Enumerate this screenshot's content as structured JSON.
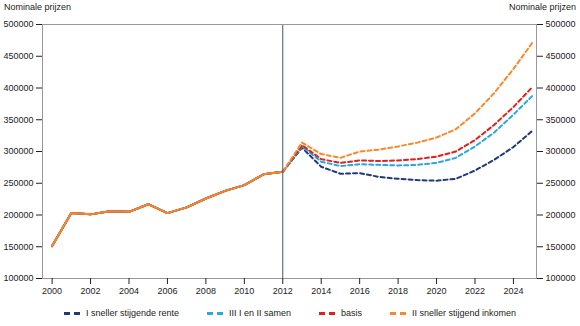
{
  "chart_data": {
    "type": "line",
    "y_label": "Nominale prijzen",
    "y2_label": "Nominale prijzen",
    "x": [
      2000,
      2001,
      2002,
      2003,
      2004,
      2005,
      2006,
      2007,
      2008,
      2009,
      2010,
      2011,
      2012,
      2013,
      2014,
      2015,
      2016,
      2017,
      2018,
      2019,
      2020,
      2021,
      2022,
      2023,
      2024,
      2025
    ],
    "series": [
      {
        "name": "I sneller stijgende rente",
        "color": "#1f3a7a",
        "values": [
          151000,
          203000,
          201000,
          206000,
          205000,
          217000,
          203000,
          212000,
          226000,
          238000,
          247000,
          264000,
          268000,
          306000,
          276000,
          265000,
          266000,
          260000,
          257000,
          255000,
          254000,
          257000,
          270000,
          287000,
          307000,
          333000
        ]
      },
      {
        "name": "III I en II samen",
        "color": "#2aa6e0",
        "values": [
          151000,
          203000,
          201000,
          206000,
          205000,
          217000,
          203000,
          212000,
          226000,
          238000,
          247000,
          264000,
          268000,
          308000,
          284000,
          277000,
          280000,
          279000,
          278000,
          279000,
          282000,
          290000,
          308000,
          330000,
          358000,
          388000
        ]
      },
      {
        "name": "basis",
        "color": "#e0201b",
        "values": [
          151000,
          203000,
          201000,
          206000,
          205000,
          217000,
          203000,
          212000,
          226000,
          238000,
          247000,
          264000,
          268000,
          310000,
          288000,
          282000,
          286000,
          285000,
          286000,
          288000,
          292000,
          300000,
          318000,
          342000,
          370000,
          402000
        ]
      },
      {
        "name": "II sneller stijgend inkomen",
        "color": "#f58a2b",
        "values": [
          151000,
          203000,
          201000,
          206000,
          205000,
          217000,
          203000,
          212000,
          226000,
          238000,
          247000,
          264000,
          268000,
          314000,
          296000,
          290000,
          300000,
          303000,
          308000,
          314000,
          322000,
          335000,
          360000,
          392000,
          430000,
          472000
        ]
      }
    ],
    "vertical_line": 2012,
    "line_style": "dashed",
    "xlim": [
      1999.5,
      2025.2
    ],
    "xticks": [
      2000,
      2002,
      2004,
      2006,
      2008,
      2010,
      2012,
      2014,
      2016,
      2018,
      2020,
      2022,
      2024
    ],
    "ylim": [
      100000,
      500000
    ],
    "yticks": [
      100000,
      150000,
      200000,
      250000,
      300000,
      350000,
      400000,
      450000,
      500000
    ],
    "y2lim": [
      100000,
      500000
    ],
    "y2ticks": [
      100000,
      150000,
      200000,
      250000,
      300000,
      350000,
      400000,
      450000,
      500000
    ],
    "grid": false,
    "legend": "bottom"
  }
}
